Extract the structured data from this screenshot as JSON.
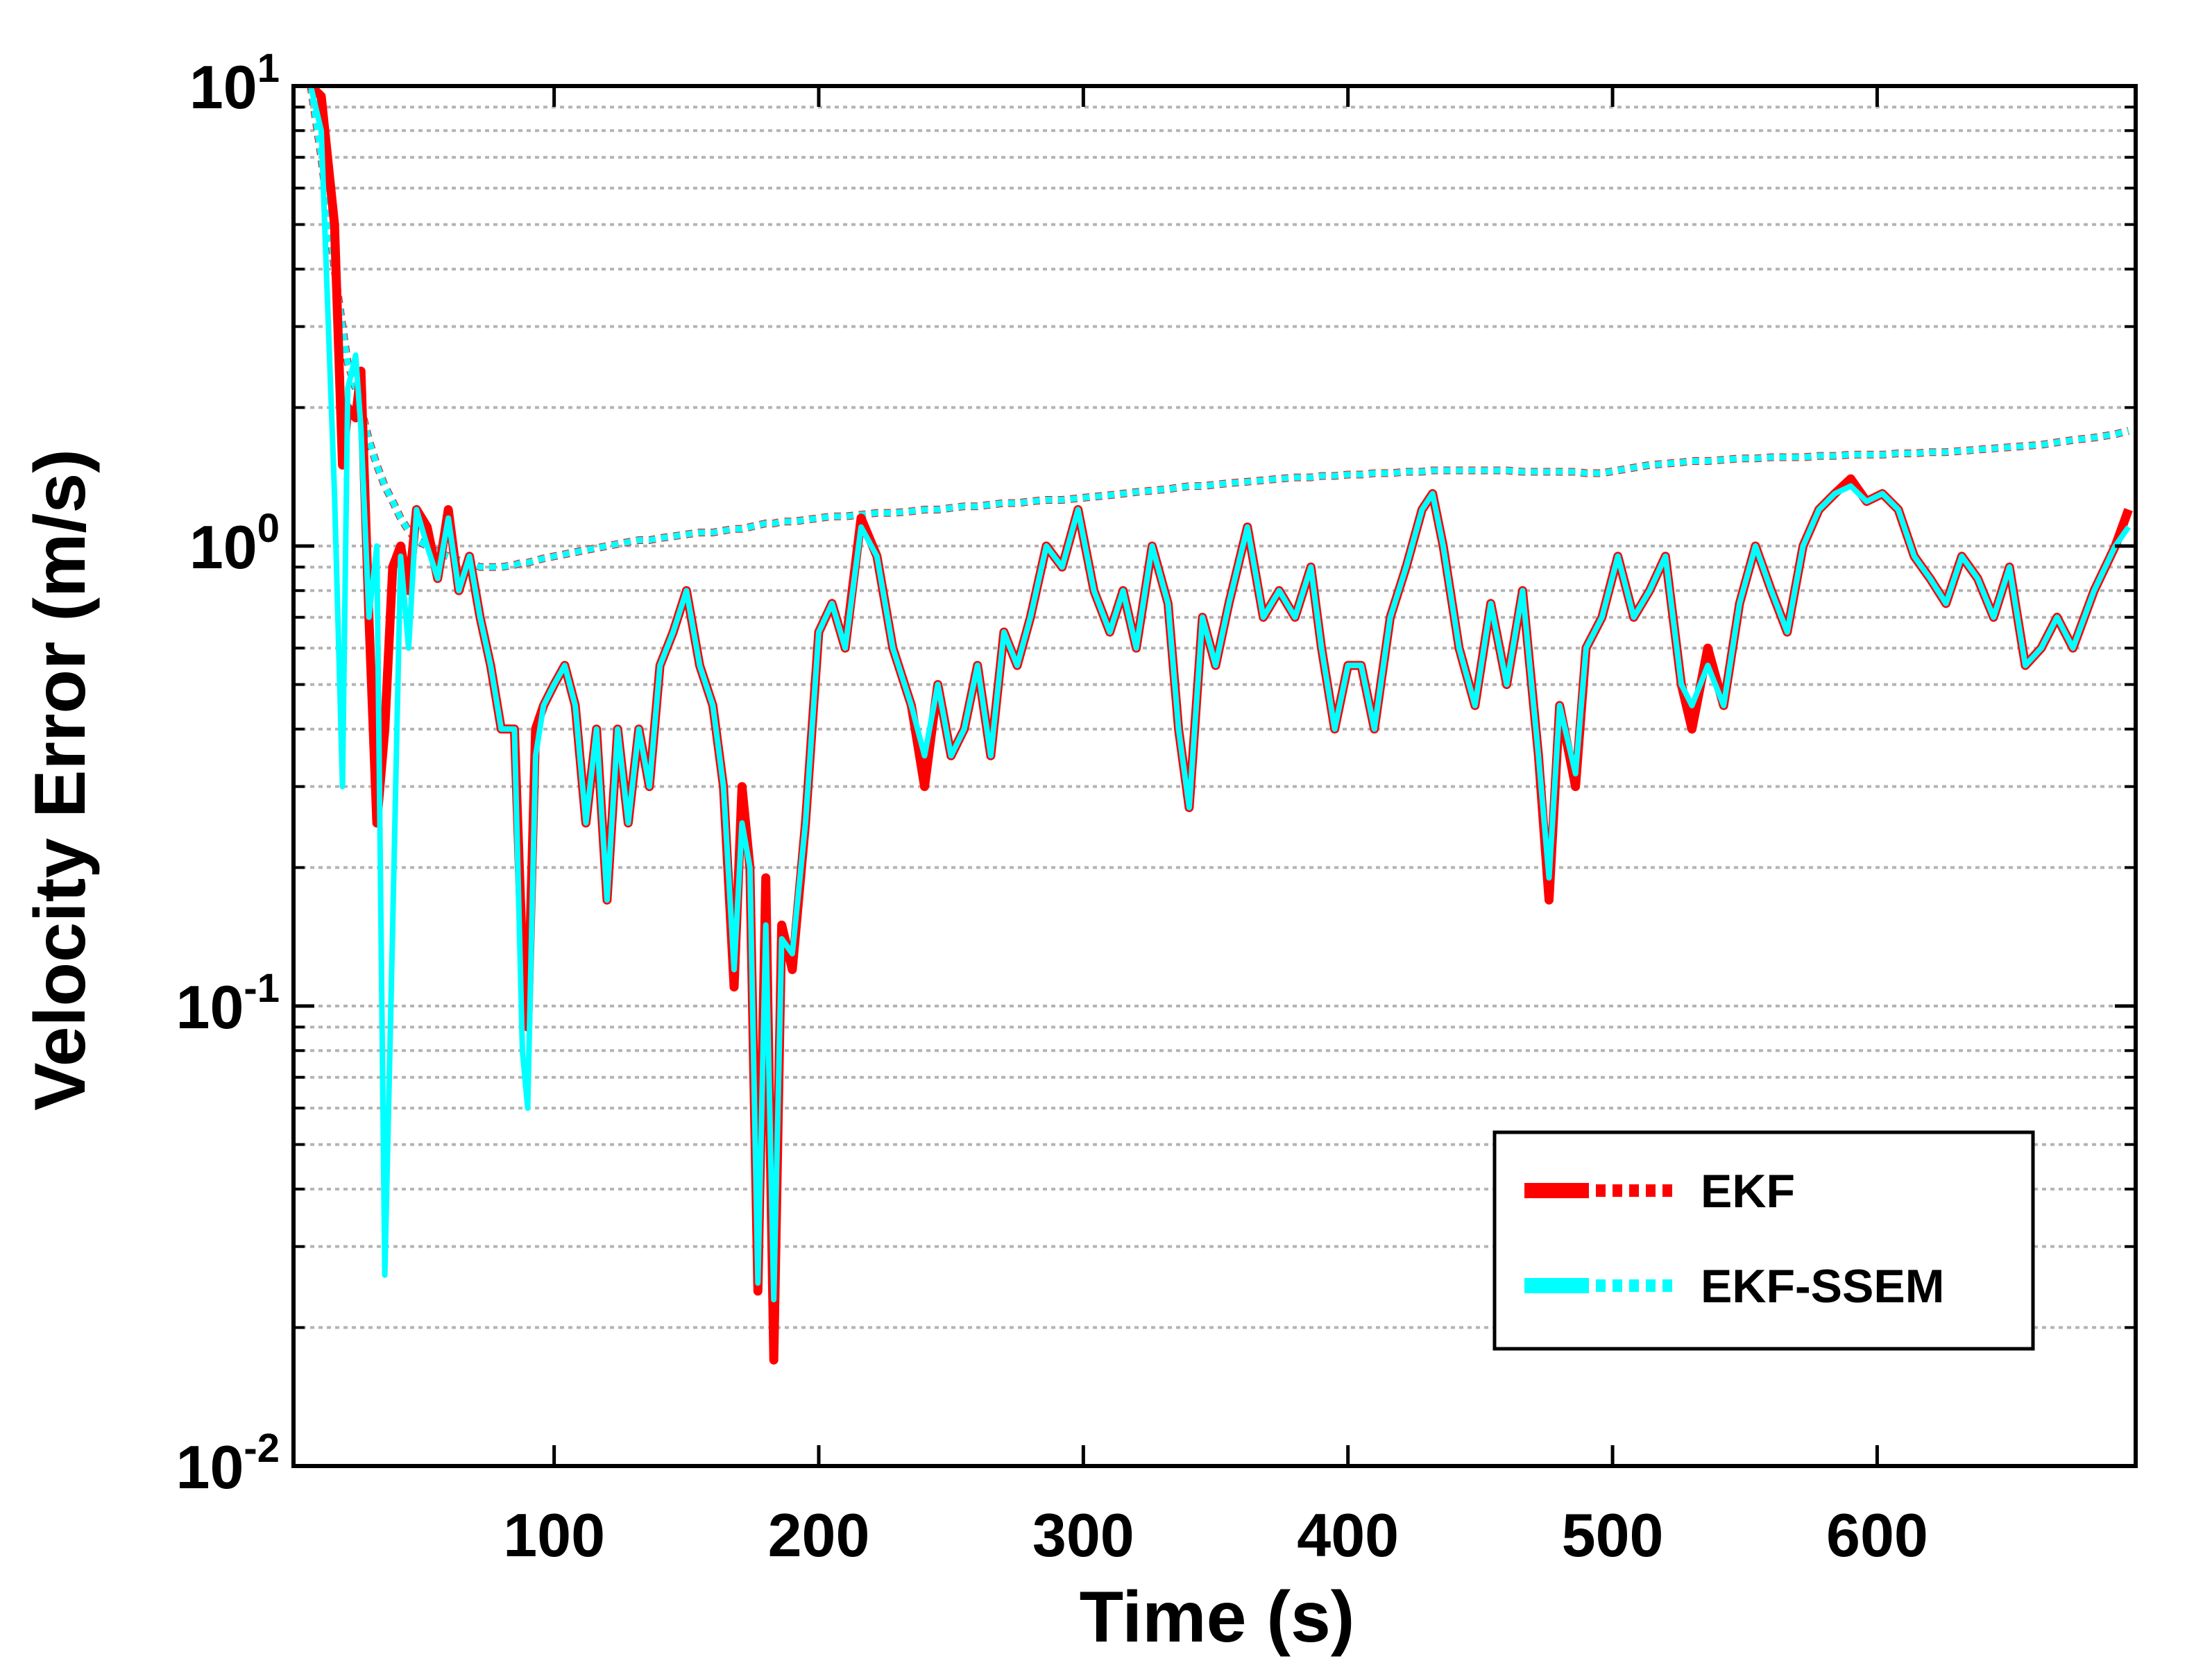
{
  "chart_data": {
    "type": "line",
    "xlabel": "Time (s)",
    "ylabel": "Velocity Error (m/s)",
    "log_y": true,
    "grid": true,
    "legend": "lower right",
    "xlim": [
      1.5,
      697.7
    ],
    "ylim": [
      0.01,
      10
    ],
    "xticks": [
      100,
      200,
      300,
      400,
      500,
      600
    ],
    "yticks": [
      {
        "value": 0.01,
        "label": "10",
        "exponent": "-2"
      },
      {
        "value": 0.1,
        "label": "10",
        "exponent": "-1"
      },
      {
        "value": 1,
        "label": "10",
        "exponent": "0"
      },
      {
        "value": 10,
        "label": "10",
        "exponent": "1"
      }
    ],
    "yminorticks": [
      0.02,
      0.03,
      0.04,
      0.05,
      0.06,
      0.07,
      0.08,
      0.09,
      0.2,
      0.3,
      0.4,
      0.5,
      0.6,
      0.7,
      0.8,
      0.9,
      2,
      3,
      4,
      5,
      6,
      7,
      8,
      9
    ],
    "x": [
      8,
      12,
      17,
      20,
      22,
      25,
      27,
      30,
      33,
      36,
      39,
      42,
      45,
      48,
      52,
      56,
      60,
      64,
      68,
      72,
      76,
      80,
      85,
      88,
      90,
      93,
      96,
      100,
      104,
      108,
      112,
      116,
      120,
      124,
      128,
      132,
      136,
      140,
      145,
      150,
      155,
      160,
      164,
      168,
      171,
      174,
      177,
      180,
      183,
      186,
      190,
      195,
      200,
      205,
      210,
      216,
      222,
      228,
      235,
      240,
      245,
      250,
      255,
      260,
      265,
      270,
      275,
      280,
      286,
      292,
      298,
      304,
      310,
      315,
      320,
      326,
      332,
      336,
      340,
      345,
      350,
      355,
      362,
      368,
      374,
      380,
      386,
      390,
      395,
      400,
      405,
      410,
      416,
      422,
      428,
      432,
      436,
      442,
      448,
      454,
      460,
      466,
      472,
      476,
      480,
      486,
      490,
      496,
      502,
      508,
      514,
      520,
      526,
      530,
      536,
      542,
      548,
      554,
      560,
      566,
      572,
      578,
      584,
      590,
      596,
      602,
      608,
      614,
      620,
      626,
      632,
      638,
      644,
      650,
      656,
      662,
      668,
      674,
      682,
      690,
      695
    ],
    "series": [
      {
        "name": "EKF",
        "color": "#ff0000",
        "values": [
          10,
          9.5,
          5,
          1.5,
          2.0,
          1.9,
          2.4,
          0.7,
          0.25,
          0.4,
          0.9,
          1.0,
          0.8,
          1.2,
          1.1,
          0.85,
          1.2,
          0.8,
          0.95,
          0.7,
          0.55,
          0.4,
          0.4,
          0.13,
          0.09,
          0.4,
          0.45,
          0.5,
          0.55,
          0.45,
          0.25,
          0.4,
          0.17,
          0.4,
          0.25,
          0.4,
          0.3,
          0.55,
          0.65,
          0.8,
          0.55,
          0.45,
          0.3,
          0.11,
          0.3,
          0.2,
          0.024,
          0.19,
          0.017,
          0.15,
          0.12,
          0.25,
          0.65,
          0.75,
          0.6,
          1.15,
          0.95,
          0.6,
          0.45,
          0.3,
          0.5,
          0.35,
          0.4,
          0.55,
          0.35,
          0.65,
          0.55,
          0.7,
          1.0,
          0.9,
          1.2,
          0.8,
          0.65,
          0.8,
          0.6,
          1.0,
          0.75,
          0.4,
          0.27,
          0.7,
          0.55,
          0.75,
          1.1,
          0.7,
          0.8,
          0.7,
          0.9,
          0.6,
          0.4,
          0.55,
          0.55,
          0.4,
          0.7,
          0.9,
          1.2,
          1.3,
          1.0,
          0.6,
          0.45,
          0.75,
          0.5,
          0.8,
          0.35,
          0.17,
          0.45,
          0.3,
          0.6,
          0.7,
          0.95,
          0.7,
          0.8,
          0.95,
          0.5,
          0.4,
          0.6,
          0.45,
          0.75,
          1.0,
          0.8,
          0.65,
          1.0,
          1.2,
          1.3,
          1.4,
          1.25,
          1.3,
          1.2,
          0.95,
          0.85,
          0.75,
          0.95,
          0.85,
          0.7,
          0.9,
          0.55,
          0.6,
          0.7,
          0.6,
          0.8,
          1.0,
          1.2
        ],
        "bound": [
          10,
          7,
          4,
          3,
          2.5,
          2.2,
          2.0,
          1.7,
          1.5,
          1.35,
          1.25,
          1.15,
          1.08,
          1.03,
          1.0,
          0.97,
          0.95,
          0.93,
          0.92,
          0.9,
          0.9,
          0.9,
          0.91,
          0.92,
          0.92,
          0.93,
          0.94,
          0.95,
          0.96,
          0.97,
          0.98,
          0.99,
          1.0,
          1.01,
          1.02,
          1.03,
          1.03,
          1.04,
          1.05,
          1.06,
          1.07,
          1.07,
          1.08,
          1.09,
          1.09,
          1.1,
          1.11,
          1.12,
          1.12,
          1.13,
          1.13,
          1.14,
          1.15,
          1.16,
          1.16,
          1.17,
          1.18,
          1.18,
          1.19,
          1.2,
          1.2,
          1.21,
          1.22,
          1.22,
          1.23,
          1.24,
          1.24,
          1.25,
          1.26,
          1.26,
          1.27,
          1.28,
          1.29,
          1.3,
          1.31,
          1.32,
          1.33,
          1.34,
          1.35,
          1.35,
          1.36,
          1.37,
          1.38,
          1.39,
          1.4,
          1.41,
          1.41,
          1.42,
          1.42,
          1.43,
          1.43,
          1.44,
          1.44,
          1.45,
          1.45,
          1.46,
          1.46,
          1.46,
          1.46,
          1.46,
          1.46,
          1.45,
          1.45,
          1.45,
          1.45,
          1.45,
          1.44,
          1.44,
          1.46,
          1.48,
          1.5,
          1.51,
          1.52,
          1.53,
          1.53,
          1.54,
          1.55,
          1.55,
          1.56,
          1.56,
          1.56,
          1.57,
          1.57,
          1.58,
          1.58,
          1.58,
          1.59,
          1.59,
          1.6,
          1.6,
          1.61,
          1.62,
          1.63,
          1.64,
          1.65,
          1.66,
          1.68,
          1.7,
          1.72,
          1.75,
          1.78
        ]
      },
      {
        "name": "EKF-SSEM",
        "color": "#00ffff",
        "values": [
          10,
          8,
          1.3,
          0.3,
          2.2,
          2.6,
          1.8,
          0.7,
          1.0,
          0.026,
          0.15,
          0.95,
          0.6,
          1.2,
          1.0,
          0.85,
          1.15,
          0.8,
          0.95,
          0.7,
          0.55,
          0.4,
          0.4,
          0.08,
          0.06,
          0.35,
          0.45,
          0.5,
          0.55,
          0.45,
          0.25,
          0.4,
          0.17,
          0.4,
          0.25,
          0.4,
          0.3,
          0.55,
          0.65,
          0.8,
          0.55,
          0.45,
          0.3,
          0.12,
          0.25,
          0.2,
          0.025,
          0.15,
          0.023,
          0.14,
          0.13,
          0.25,
          0.65,
          0.75,
          0.6,
          1.1,
          0.95,
          0.6,
          0.45,
          0.35,
          0.5,
          0.35,
          0.4,
          0.55,
          0.35,
          0.65,
          0.55,
          0.7,
          1.0,
          0.9,
          1.2,
          0.8,
          0.65,
          0.8,
          0.6,
          1.0,
          0.75,
          0.4,
          0.27,
          0.7,
          0.55,
          0.75,
          1.1,
          0.7,
          0.8,
          0.7,
          0.9,
          0.6,
          0.4,
          0.55,
          0.55,
          0.4,
          0.7,
          0.9,
          1.2,
          1.3,
          1.0,
          0.6,
          0.45,
          0.75,
          0.5,
          0.8,
          0.35,
          0.19,
          0.45,
          0.32,
          0.6,
          0.7,
          0.95,
          0.7,
          0.8,
          0.95,
          0.5,
          0.45,
          0.55,
          0.45,
          0.75,
          1.0,
          0.8,
          0.65,
          1.0,
          1.2,
          1.3,
          1.35,
          1.25,
          1.3,
          1.2,
          0.95,
          0.85,
          0.75,
          0.95,
          0.85,
          0.7,
          0.9,
          0.55,
          0.6,
          0.7,
          0.6,
          0.8,
          1.0,
          1.1
        ],
        "bound": [
          10,
          7,
          4,
          3,
          2.5,
          2.2,
          2.0,
          1.7,
          1.5,
          1.35,
          1.25,
          1.15,
          1.08,
          1.03,
          1.0,
          0.97,
          0.95,
          0.93,
          0.92,
          0.9,
          0.9,
          0.9,
          0.91,
          0.92,
          0.92,
          0.93,
          0.94,
          0.95,
          0.96,
          0.97,
          0.98,
          0.99,
          1.0,
          1.01,
          1.02,
          1.03,
          1.03,
          1.04,
          1.05,
          1.06,
          1.07,
          1.07,
          1.08,
          1.09,
          1.09,
          1.1,
          1.11,
          1.12,
          1.12,
          1.13,
          1.13,
          1.14,
          1.15,
          1.16,
          1.16,
          1.17,
          1.18,
          1.18,
          1.19,
          1.2,
          1.2,
          1.21,
          1.22,
          1.22,
          1.23,
          1.24,
          1.24,
          1.25,
          1.26,
          1.26,
          1.27,
          1.28,
          1.29,
          1.3,
          1.31,
          1.32,
          1.33,
          1.34,
          1.35,
          1.35,
          1.36,
          1.37,
          1.38,
          1.39,
          1.4,
          1.41,
          1.41,
          1.42,
          1.42,
          1.43,
          1.43,
          1.44,
          1.44,
          1.45,
          1.45,
          1.46,
          1.46,
          1.46,
          1.46,
          1.46,
          1.46,
          1.45,
          1.45,
          1.45,
          1.45,
          1.45,
          1.44,
          1.44,
          1.46,
          1.48,
          1.5,
          1.51,
          1.52,
          1.53,
          1.53,
          1.54,
          1.55,
          1.55,
          1.56,
          1.56,
          1.56,
          1.57,
          1.57,
          1.58,
          1.58,
          1.58,
          1.59,
          1.59,
          1.6,
          1.6,
          1.61,
          1.62,
          1.63,
          1.64,
          1.65,
          1.66,
          1.68,
          1.7,
          1.72,
          1.75,
          1.78
        ]
      }
    ]
  }
}
